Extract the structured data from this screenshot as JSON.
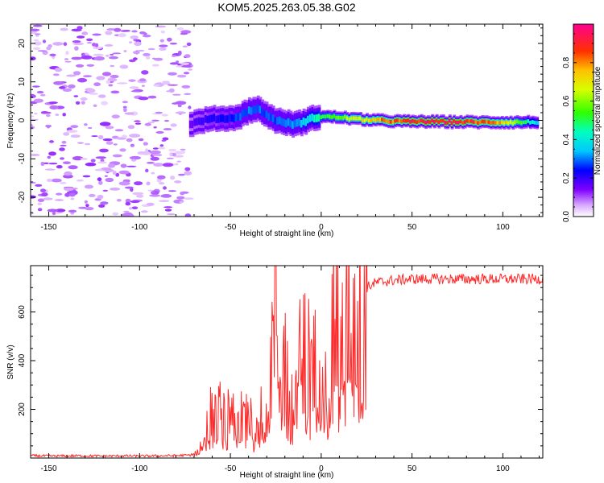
{
  "title": "KOM5.2025.263.05.38.G02",
  "chart_data": [
    {
      "type": "heatmap",
      "title": "KOM5.2025.263.05.38.G02",
      "xlabel": "Height of straight line (km)",
      "ylabel": "Frequency (Hz)",
      "xlim": [
        -160,
        122
      ],
      "ylim": [
        -25,
        25
      ],
      "xticks": [
        -150,
        -100,
        -50,
        0,
        50,
        100
      ],
      "xtick_labels": [
        "-150",
        "-100",
        "-50",
        "0",
        "50",
        "100"
      ],
      "yticks": [
        20,
        10,
        0,
        -10,
        -20
      ],
      "ytick_labels": [
        "20",
        "10",
        "0",
        "-10",
        "-20"
      ],
      "noise_region_x": [
        -160,
        -72
      ],
      "signal_track": {
        "x": [
          -72,
          -65,
          -58,
          -50,
          -45,
          -40,
          -35,
          -30,
          -25,
          -20,
          -15,
          -10,
          -5,
          0,
          10,
          20,
          30,
          40,
          50,
          60,
          70,
          80,
          90,
          100,
          110,
          120
        ],
        "freq": [
          -1.0,
          0.0,
          0.5,
          0.5,
          1.0,
          2.5,
          3.0,
          1.5,
          0.0,
          -0.5,
          -1.0,
          -0.5,
          0.5,
          1.0,
          0.8,
          0.3,
          0.0,
          -0.2,
          -0.3,
          -0.3,
          -0.4,
          -0.4,
          -0.5,
          -0.5,
          -0.5,
          -0.4
        ],
        "amplitude": [
          0.15,
          0.2,
          0.22,
          0.25,
          0.28,
          0.3,
          0.3,
          0.28,
          0.28,
          0.3,
          0.32,
          0.35,
          0.4,
          0.5,
          0.6,
          0.7,
          0.8,
          0.85,
          0.9,
          0.95,
          0.95,
          0.9,
          0.85,
          0.75,
          0.55,
          0.35
        ]
      },
      "colorbar": {
        "label": "Normalized spectral amplitude",
        "range": [
          0,
          1
        ],
        "ticks": [
          0.0,
          0.2,
          0.4,
          0.6,
          0.8
        ],
        "tick_labels": [
          "0.0",
          "0.2",
          "0.4",
          "0.6",
          "0.8"
        ]
      }
    },
    {
      "type": "line",
      "xlabel": "Height of straight line (km)",
      "ylabel": "SNR (v/v)",
      "xlim": [
        -160,
        122
      ],
      "ylim": [
        0,
        790
      ],
      "xticks": [
        -150,
        -100,
        -50,
        0,
        50,
        100
      ],
      "xtick_labels": [
        "-150",
        "-100",
        "-50",
        "0",
        "50",
        "100"
      ],
      "yticks": [
        200,
        400,
        600
      ],
      "ytick_labels": [
        "200",
        "400",
        "600"
      ],
      "series": [
        {
          "name": "SNR",
          "color": "#ff2a2a",
          "x": [
            -160,
            -150,
            -140,
            -130,
            -120,
            -110,
            -100,
            -90,
            -80,
            -72,
            -68,
            -64,
            -61,
            -58,
            -55,
            -52,
            -49,
            -46,
            -43,
            -40,
            -37,
            -34,
            -31,
            -28,
            -26,
            -25,
            -24,
            -22,
            -20,
            -18,
            -16,
            -14,
            -12,
            -10,
            -8,
            -5,
            -2,
            0,
            3,
            6,
            10,
            15,
            20,
            25,
            30,
            40,
            50,
            60,
            70,
            80,
            90,
            100,
            110,
            122
          ],
          "values": [
            10,
            8,
            9,
            9,
            8,
            9,
            8,
            9,
            10,
            12,
            25,
            90,
            180,
            150,
            200,
            140,
            230,
            120,
            180,
            200,
            130,
            250,
            160,
            380,
            500,
            760,
            420,
            280,
            430,
            320,
            230,
            330,
            380,
            400,
            420,
            360,
            430,
            440,
            470,
            520,
            570,
            620,
            670,
            700,
            720,
            730,
            735,
            735,
            735,
            735,
            735,
            735,
            735,
            735
          ]
        }
      ]
    }
  ]
}
